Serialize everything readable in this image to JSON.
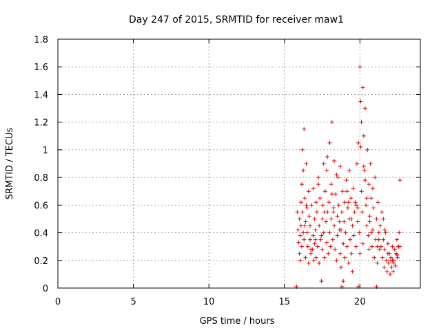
{
  "chart_data": {
    "type": "scatter",
    "title": "Day 247 of 2015, SRMTID for receiver maw1",
    "xlabel": "GPS time / hours",
    "ylabel": "SRMTID / TECUs",
    "xlim": [
      0,
      24
    ],
    "ylim": [
      0,
      1.8
    ],
    "xticks": [
      0,
      5,
      10,
      15,
      20
    ],
    "yticks": [
      0,
      0.2,
      0.4,
      0.6,
      0.8,
      1,
      1.2,
      1.4,
      1.6,
      1.8
    ],
    "ytick_labels": [
      "0",
      "0.2",
      "0.4",
      "0.6",
      "0.8",
      "1",
      "1.2",
      "1.4",
      "1.6",
      "1.8"
    ],
    "grid": true,
    "marker": "+",
    "color": "#e00000",
    "series": [
      {
        "name": "SRMTID",
        "x": [
          15.8,
          15.85,
          15.9,
          15.95,
          16.0,
          16.0,
          16.05,
          16.05,
          16.1,
          16.1,
          16.15,
          16.15,
          16.2,
          16.2,
          16.25,
          16.3,
          16.3,
          16.35,
          16.4,
          16.4,
          16.45,
          16.5,
          16.5,
          16.55,
          16.6,
          16.6,
          16.65,
          16.7,
          16.7,
          16.75,
          16.8,
          16.85,
          16.9,
          16.9,
          16.95,
          17.0,
          17.0,
          17.05,
          17.1,
          17.1,
          17.15,
          17.2,
          17.25,
          17.3,
          17.3,
          17.35,
          17.4,
          17.45,
          17.5,
          17.5,
          17.55,
          17.6,
          17.6,
          17.65,
          17.7,
          17.75,
          17.8,
          17.8,
          17.85,
          17.9,
          17.95,
          18.0,
          18.0,
          18.05,
          18.1,
          18.1,
          18.15,
          18.2,
          18.25,
          18.3,
          18.3,
          18.35,
          18.4,
          18.45,
          18.5,
          18.5,
          18.55,
          18.6,
          18.65,
          18.7,
          18.7,
          18.75,
          18.8,
          18.85,
          18.9,
          18.9,
          18.95,
          19.0,
          19.0,
          19.05,
          19.1,
          19.15,
          19.2,
          19.25,
          19.3,
          19.3,
          19.35,
          19.4,
          19.45,
          19.5,
          19.5,
          19.55,
          19.6,
          19.65,
          19.7,
          19.75,
          19.8,
          19.85,
          19.9,
          19.95,
          20.0,
          20.0,
          20.05,
          20.1,
          20.1,
          20.15,
          20.2,
          20.2,
          20.25,
          20.3,
          20.35,
          20.4,
          20.45,
          20.5,
          20.55,
          20.6,
          20.6,
          20.65,
          20.7,
          20.75,
          20.8,
          20.85,
          20.9,
          20.95,
          21.0,
          21.05,
          21.1,
          21.15,
          21.2,
          21.25,
          21.3,
          21.35,
          21.4,
          21.45,
          21.5,
          21.55,
          21.6,
          21.65,
          21.7,
          21.75,
          21.8,
          21.85,
          21.9,
          21.95,
          22.0,
          22.05,
          22.1,
          22.15,
          22.2,
          22.25,
          22.3,
          22.35,
          22.4,
          22.45,
          22.5,
          22.55,
          22.6,
          22.65,
          16.25,
          16.45,
          16.75,
          17.25,
          17.45,
          17.85,
          18.25,
          18.45,
          18.75,
          19.15,
          19.45,
          19.75,
          20.05,
          20.25,
          20.45,
          20.65,
          20.85,
          21.25,
          21.55,
          21.85,
          22.05,
          22.25,
          22.45,
          22.65,
          16.35,
          17.05,
          17.65,
          18.15,
          18.65,
          19.25,
          19.85,
          20.35,
          20.75,
          21.15,
          21.65,
          22.15,
          22.55,
          15.8,
          18.8,
          19.9,
          21.1
        ],
        "y": [
          0.01,
          0.55,
          0.42,
          0.33,
          0.25,
          0.5,
          0.38,
          0.2,
          0.62,
          0.45,
          0.3,
          0.75,
          0.55,
          1.0,
          0.85,
          0.35,
          1.15,
          0.65,
          0.48,
          0.22,
          0.9,
          0.4,
          0.58,
          0.3,
          0.7,
          0.18,
          0.52,
          0.35,
          0.45,
          0.25,
          0.6,
          0.28,
          0.38,
          0.72,
          0.2,
          0.5,
          0.32,
          0.42,
          0.62,
          0.22,
          0.55,
          0.3,
          0.8,
          0.45,
          0.18,
          0.65,
          0.35,
          0.05,
          0.5,
          0.28,
          0.6,
          0.4,
          0.9,
          0.22,
          0.7,
          0.48,
          0.33,
          0.85,
          0.55,
          0.25,
          0.62,
          0.4,
          1.05,
          0.3,
          0.75,
          0.5,
          1.2,
          0.35,
          0.58,
          0.45,
          0.92,
          0.28,
          0.68,
          0.2,
          0.52,
          0.38,
          0.8,
          0.6,
          0.42,
          0.25,
          0.88,
          0.15,
          0.55,
          0.7,
          0.32,
          0.05,
          0.48,
          0.62,
          0.22,
          0.4,
          0.78,
          0.3,
          0.58,
          0.18,
          0.5,
          0.85,
          0.35,
          0.65,
          0.25,
          0.45,
          0.12,
          0.72,
          0.38,
          0.55,
          0.62,
          0.3,
          0.9,
          0.48,
          1.05,
          0.4,
          1.6,
          0.25,
          1.35,
          0.7,
          1.2,
          0.55,
          1.45,
          0.32,
          1.1,
          0.85,
          1.3,
          0.6,
          0.45,
          1.0,
          0.38,
          0.75,
          0.28,
          0.52,
          0.9,
          0.65,
          0.3,
          0.42,
          0.58,
          0.22,
          0.8,
          0.35,
          0.5,
          0.18,
          0.62,
          0.4,
          0.28,
          0.45,
          0.3,
          0.55,
          0.22,
          0.35,
          0.15,
          0.28,
          0.4,
          0.2,
          0.12,
          0.32,
          0.18,
          0.25,
          0.1,
          0.22,
          0.15,
          0.3,
          0.12,
          0.2,
          0.28,
          0.16,
          0.25,
          0.35,
          0.22,
          0.3,
          0.4,
          0.78,
          0.4,
          0.6,
          0.28,
          0.75,
          0.38,
          0.95,
          0.55,
          0.82,
          0.42,
          0.7,
          0.5,
          0.6,
          1.02,
          0.88,
          0.65,
          0.48,
          0.72,
          0.35,
          0.5,
          0.25,
          0.2,
          0.18,
          0.24,
          0.3,
          0.45,
          0.35,
          0.55,
          0.68,
          0.48,
          0.62,
          0.58,
          0.78,
          0.4,
          0.3,
          0.42,
          0.2,
          0.3,
          0.01,
          0.01,
          0.01,
          0.01
        ]
      }
    ]
  }
}
